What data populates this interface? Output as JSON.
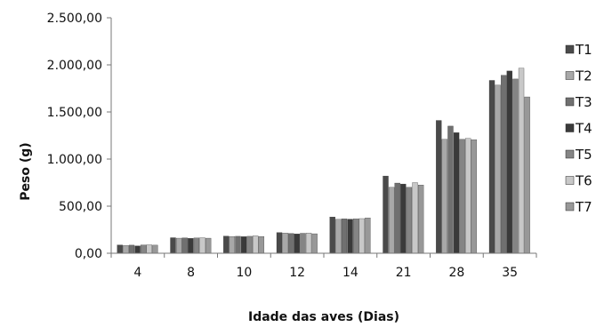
{
  "chart_data": {
    "type": "bar",
    "title": "",
    "xlabel": "Idade das aves (Dias)",
    "ylabel": "Peso (g)",
    "ylim": [
      0,
      2500
    ],
    "y_ticks": [
      "0,00",
      "500,00",
      "1.000,00",
      "1.500,00",
      "2.000,00",
      "2.500,00"
    ],
    "grid": false,
    "legend_position": "right",
    "categories": [
      "4",
      "8",
      "10",
      "12",
      "14",
      "21",
      "28",
      "35"
    ],
    "series": [
      {
        "name": "T1",
        "color": "#4a4a4a",
        "values": [
          88,
          165,
          182,
          220,
          385,
          820,
          1410,
          1835
        ]
      },
      {
        "name": "T2",
        "color": "#a8a8a8",
        "values": [
          82,
          160,
          178,
          215,
          360,
          700,
          1210,
          1785
        ]
      },
      {
        "name": "T3",
        "color": "#707070",
        "values": [
          86,
          163,
          180,
          210,
          365,
          745,
          1350,
          1890
        ]
      },
      {
        "name": "T4",
        "color": "#3a3a3a",
        "values": [
          78,
          158,
          176,
          205,
          362,
          735,
          1280,
          1935
        ]
      },
      {
        "name": "T5",
        "color": "#858585",
        "values": [
          88,
          162,
          180,
          212,
          365,
          700,
          1210,
          1850
        ]
      },
      {
        "name": "T6",
        "color": "#c8c8c8",
        "values": [
          90,
          165,
          185,
          215,
          368,
          750,
          1220,
          1965
        ]
      },
      {
        "name": "T7",
        "color": "#989898",
        "values": [
          86,
          160,
          178,
          207,
          375,
          725,
          1205,
          1660
        ]
      }
    ]
  }
}
